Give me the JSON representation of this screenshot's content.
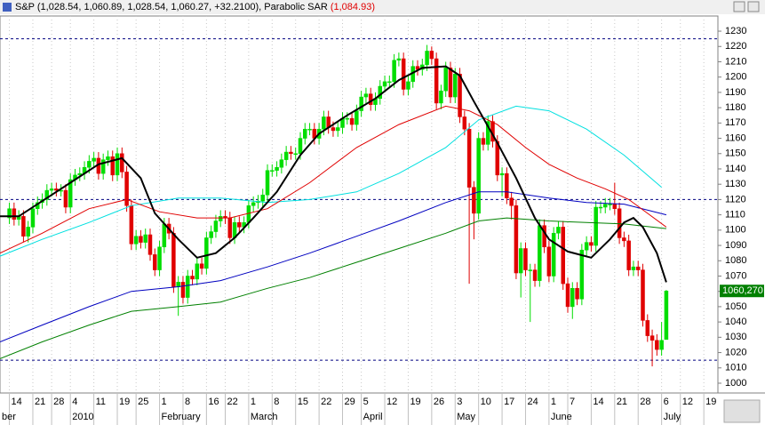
{
  "chart_data": {
    "type": "candlestick",
    "title": "S&P (1,028.54, 1,060.89, 1,028.54, 1,060.27, +32.2100),",
    "indicator_name": "Parabolic SAR",
    "indicator_value": "(1,084.93)",
    "up_color": "#00dd00",
    "down_color": "#e00000",
    "xlim": [
      -2,
      151
    ],
    "ylim": [
      993.6,
      1239.9
    ],
    "yticks": [
      1000,
      1010,
      1020,
      1030,
      1040,
      1050,
      1060,
      1070,
      1080,
      1090,
      1100,
      1110,
      1120,
      1130,
      1140,
      1150,
      1160,
      1170,
      1180,
      1190,
      1200,
      1210,
      1220,
      1230
    ],
    "xticks": [
      {
        "value": 0,
        "label": "14"
      },
      {
        "value": 5,
        "label": "21"
      },
      {
        "value": 9,
        "label": "28"
      },
      {
        "value": 13,
        "label": "4"
      },
      {
        "value": 18,
        "label": "11"
      },
      {
        "value": 23,
        "label": "19"
      },
      {
        "value": 27,
        "label": "25"
      },
      {
        "value": 32,
        "label": "1"
      },
      {
        "value": 37,
        "label": "8"
      },
      {
        "value": 42,
        "label": "16"
      },
      {
        "value": 46,
        "label": "22"
      },
      {
        "value": 51,
        "label": "1"
      },
      {
        "value": 56,
        "label": "8"
      },
      {
        "value": 61,
        "label": "15"
      },
      {
        "value": 66,
        "label": "22"
      },
      {
        "value": 71,
        "label": "29"
      },
      {
        "value": 75,
        "label": "5"
      },
      {
        "value": 80,
        "label": "12"
      },
      {
        "value": 85,
        "label": "19"
      },
      {
        "value": 90,
        "label": "26"
      },
      {
        "value": 95,
        "label": "3"
      },
      {
        "value": 100,
        "label": "10"
      },
      {
        "value": 105,
        "label": "17"
      },
      {
        "value": 110,
        "label": "24"
      },
      {
        "value": 115,
        "label": "1"
      },
      {
        "value": 119,
        "label": "7"
      },
      {
        "value": 124,
        "label": "14"
      },
      {
        "value": 129,
        "label": "21"
      },
      {
        "value": 134,
        "label": "28"
      },
      {
        "value": 139,
        "label": "6"
      },
      {
        "value": 143,
        "label": "12"
      },
      {
        "value": 148,
        "label": "19"
      }
    ],
    "month_ticks": [
      {
        "value": -2,
        "label": "ber"
      },
      {
        "value": 13,
        "label": "2010"
      },
      {
        "value": 32,
        "label": "February"
      },
      {
        "value": 51,
        "label": "March"
      },
      {
        "value": 75,
        "label": "April"
      },
      {
        "value": 95,
        "label": "May"
      },
      {
        "value": 115,
        "label": "June"
      },
      {
        "value": 139,
        "label": "July"
      }
    ],
    "grid": true,
    "hlines": [
      1225,
      1120,
      1015
    ],
    "price_tag": {
      "value": 1060.27,
      "label": "1060,270"
    },
    "candles": {
      "open": [
        1108,
        1114,
        1107,
        1109,
        1096,
        1102,
        1114,
        1118,
        1120,
        1126,
        1127,
        1126,
        1126,
        1115,
        1133,
        1136,
        1137,
        1141,
        1145,
        1147,
        1137,
        1146,
        1148,
        1136,
        1150,
        1138,
        1116,
        1091,
        1096,
        1092,
        1097,
        1084,
        1074,
        1089,
        1104,
        1098,
        1063,
        1066,
        1056,
        1070,
        1068,
        1078,
        1075,
        1095,
        1099,
        1106,
        1109,
        1108,
        1095,
        1105,
        1102,
        1105,
        1116,
        1118,
        1119,
        1123,
        1139,
        1139,
        1141,
        1146,
        1151,
        1150,
        1150,
        1160,
        1166,
        1166,
        1160,
        1166,
        1174,
        1167,
        1165,
        1167,
        1173,
        1173,
        1169,
        1178,
        1187,
        1189,
        1182,
        1186,
        1194,
        1197,
        1197,
        1211,
        1212,
        1192,
        1197,
        1207,
        1205,
        1208,
        1217,
        1212,
        1183,
        1191,
        1206,
        1187,
        1202,
        1174,
        1166,
        1128,
        1111,
        1160,
        1156,
        1171,
        1158,
        1136,
        1137,
        1121,
        1116,
        1072,
        1088,
        1074,
        1074,
        1067,
        1103,
        1089,
        1070,
        1098,
        1102,
        1065,
        1050,
        1062,
        1055,
        1087,
        1092,
        1090,
        1115,
        1115,
        1117,
        1117,
        1114,
        1095,
        1093,
        1074,
        1076,
        1074,
        1041,
        1031,
        1028,
        1022,
        1028.54
      ],
      "high": [
        1118,
        1118,
        1113,
        1113,
        1106,
        1118,
        1122,
        1124,
        1130,
        1131,
        1131,
        1130,
        1130,
        1137,
        1140,
        1141,
        1145,
        1149,
        1151,
        1151,
        1150,
        1152,
        1152,
        1154,
        1154,
        1142,
        1120,
        1100,
        1100,
        1101,
        1101,
        1088,
        1093,
        1108,
        1108,
        1102,
        1070,
        1070,
        1074,
        1074,
        1082,
        1082,
        1099,
        1103,
        1110,
        1113,
        1113,
        1112,
        1109,
        1109,
        1109,
        1120,
        1122,
        1123,
        1127,
        1143,
        1143,
        1145,
        1150,
        1155,
        1155,
        1154,
        1164,
        1170,
        1170,
        1170,
        1170,
        1178,
        1178,
        1171,
        1171,
        1177,
        1177,
        1177,
        1182,
        1191,
        1193,
        1193,
        1190,
        1198,
        1201,
        1201,
        1215,
        1216,
        1216,
        1201,
        1211,
        1211,
        1212,
        1221,
        1220,
        1216,
        1195,
        1210,
        1210,
        1206,
        1206,
        1178,
        1170,
        1132,
        1164,
        1164,
        1175,
        1175,
        1162,
        1141,
        1141,
        1125,
        1120,
        1092,
        1092,
        1078,
        1078,
        1107,
        1107,
        1093,
        1102,
        1106,
        1106,
        1069,
        1066,
        1066,
        1091,
        1096,
        1096,
        1119,
        1119,
        1121,
        1121,
        1131,
        1118,
        1099,
        1097,
        1080,
        1080,
        1078,
        1045,
        1035,
        1032,
        1040,
        1060.89
      ],
      "low": [
        1104,
        1103,
        1103,
        1092,
        1092,
        1098,
        1110,
        1114,
        1116,
        1122,
        1122,
        1122,
        1111,
        1111,
        1129,
        1132,
        1133,
        1137,
        1141,
        1133,
        1133,
        1142,
        1132,
        1132,
        1134,
        1112,
        1087,
        1087,
        1088,
        1088,
        1080,
        1070,
        1070,
        1085,
        1094,
        1059,
        1044,
        1052,
        1052,
        1064,
        1064,
        1071,
        1071,
        1091,
        1095,
        1102,
        1104,
        1091,
        1091,
        1098,
        1098,
        1101,
        1112,
        1114,
        1115,
        1119,
        1135,
        1135,
        1137,
        1142,
        1146,
        1146,
        1146,
        1156,
        1162,
        1156,
        1156,
        1162,
        1163,
        1161,
        1161,
        1163,
        1169,
        1165,
        1165,
        1174,
        1183,
        1178,
        1178,
        1182,
        1190,
        1193,
        1193,
        1207,
        1188,
        1188,
        1193,
        1201,
        1201,
        1204,
        1208,
        1179,
        1179,
        1187,
        1183,
        1183,
        1170,
        1162,
        1065,
        1094,
        1107,
        1152,
        1152,
        1154,
        1132,
        1122,
        1117,
        1107,
        1068,
        1056,
        1070,
        1040,
        1063,
        1063,
        1085,
        1066,
        1066,
        1094,
        1061,
        1046,
        1042,
        1051,
        1051,
        1083,
        1086,
        1086,
        1111,
        1111,
        1113,
        1110,
        1091,
        1089,
        1070,
        1070,
        1070,
        1037,
        1027,
        1011,
        1018,
        1018,
        1028.54
      ],
      "close": [
        1114,
        1107,
        1109,
        1096,
        1102,
        1114,
        1118,
        1120,
        1126,
        1127,
        1126,
        1126,
        1115,
        1133,
        1136,
        1137,
        1141,
        1145,
        1147,
        1137,
        1146,
        1148,
        1136,
        1150,
        1138,
        1116,
        1091,
        1096,
        1092,
        1097,
        1084,
        1074,
        1089,
        1104,
        1098,
        1063,
        1066,
        1056,
        1070,
        1068,
        1078,
        1075,
        1095,
        1099,
        1106,
        1109,
        1108,
        1095,
        1105,
        1102,
        1105,
        1116,
        1118,
        1119,
        1123,
        1139,
        1139,
        1141,
        1146,
        1151,
        1150,
        1150,
        1160,
        1166,
        1166,
        1160,
        1166,
        1174,
        1167,
        1165,
        1167,
        1173,
        1173,
        1169,
        1178,
        1187,
        1189,
        1182,
        1186,
        1194,
        1197,
        1197,
        1211,
        1212,
        1192,
        1197,
        1207,
        1205,
        1208,
        1217,
        1212,
        1183,
        1191,
        1206,
        1187,
        1202,
        1174,
        1166,
        1128,
        1111,
        1160,
        1156,
        1171,
        1158,
        1136,
        1137,
        1121,
        1116,
        1072,
        1088,
        1074,
        1074,
        1067,
        1103,
        1089,
        1070,
        1098,
        1102,
        1065,
        1050,
        1062,
        1055,
        1087,
        1092,
        1090,
        1115,
        1115,
        1117,
        1117,
        1114,
        1095,
        1093,
        1074,
        1076,
        1074,
        1041,
        1031,
        1028,
        1022,
        1028,
        1060.27
      ]
    },
    "series": [
      {
        "color": "#00e0e0",
        "x": [
          -2,
          7,
          17,
          26,
          36,
          45,
          55,
          64,
          74,
          83,
          93,
          100,
          108,
          115,
          123,
          131,
          139
        ],
        "values": [
          1083,
          1094,
          1105,
          1116,
          1121,
          1121,
          1118,
          1120,
          1125,
          1137,
          1154,
          1172,
          1181,
          1178,
          1166,
          1149,
          1128
        ]
      },
      {
        "color": "#008000",
        "x": [
          -2,
          7,
          17,
          26,
          36,
          45,
          55,
          64,
          74,
          83,
          93,
          100,
          106,
          115,
          123,
          131,
          140
        ],
        "values": [
          1016,
          1027,
          1038,
          1047,
          1050,
          1053,
          1062,
          1069,
          1079,
          1088,
          1098,
          1106,
          1108,
          1106,
          1105,
          1104,
          1101
        ]
      },
      {
        "color": "#0000c0",
        "x": [
          -2,
          7,
          17,
          26,
          36,
          45,
          55,
          64,
          74,
          83,
          93,
          100,
          106,
          115,
          123,
          131,
          140
        ],
        "values": [
          1027,
          1038,
          1050,
          1060,
          1063,
          1067,
          1076,
          1085,
          1096,
          1106,
          1118,
          1125,
          1125,
          1121,
          1118,
          1117,
          1110
        ]
      },
      {
        "color": "#e00000",
        "x": [
          -2,
          7,
          17,
          25,
          32,
          40,
          47,
          55,
          64,
          74,
          83,
          93,
          98,
          104,
          110,
          115,
          121,
          127,
          132,
          140
        ],
        "values": [
          1085,
          1098,
          1114,
          1120,
          1112,
          1108,
          1108,
          1114,
          1131,
          1154,
          1169,
          1181,
          1178,
          1169,
          1154,
          1143,
          1134,
          1127,
          1120,
          1102
        ]
      },
      {
        "color": "#000000",
        "width": 2,
        "x": [
          -2,
          2,
          8,
          13,
          19,
          24,
          28,
          31,
          36,
          40,
          44,
          48,
          52,
          57,
          62,
          66,
          72,
          78,
          83,
          88,
          93,
          96,
          99,
          104,
          108,
          112,
          115,
          119,
          124,
          128,
          131,
          133,
          135,
          138,
          140
        ],
        "values": [
          1109,
          1109,
          1121,
          1131,
          1143,
          1147,
          1134,
          1111,
          1094,
          1082,
          1085,
          1095,
          1108,
          1125,
          1149,
          1163,
          1175,
          1186,
          1198,
          1206,
          1207,
          1201,
          1184,
          1157,
          1134,
          1108,
          1094,
          1086,
          1082,
          1094,
          1105,
          1108,
          1102,
          1085,
          1066
        ]
      }
    ]
  }
}
